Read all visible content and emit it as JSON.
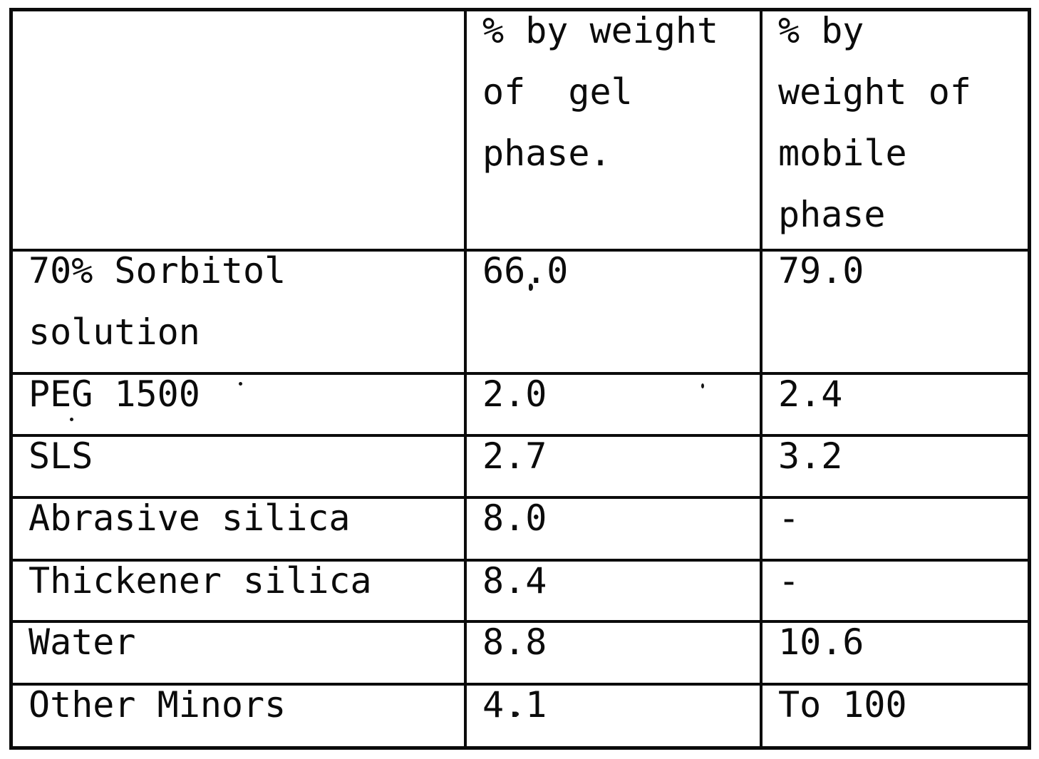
{
  "document": {
    "kind": "scanned patent table page",
    "ink_color": "#0b0b0b",
    "paper_color": "#ffffff"
  },
  "table": {
    "header": {
      "ingredient": "",
      "gel_phase": "% by weight\nof  gel\nphase.",
      "mobile_phase": "% by\nweight of\nmobile\nphase"
    },
    "rows": [
      {
        "ingredient": "70% Sorbitol\nsolution",
        "gel": "66.0",
        "mobile": "79.0"
      },
      {
        "ingredient": "PEG 1500",
        "gel": "2.0",
        "mobile": "2.4"
      },
      {
        "ingredient": "SLS",
        "gel": "2.7",
        "mobile": "3.2"
      },
      {
        "ingredient": "Abrasive silica",
        "gel": "8.0",
        "mobile": "-"
      },
      {
        "ingredient": "Thickener silica",
        "gel": "8.4",
        "mobile": "-"
      },
      {
        "ingredient": "Water",
        "gel": "8.8",
        "mobile": "10.6"
      },
      {
        "ingredient": "Other Minors",
        "gel": "4.1",
        "mobile": "To 100"
      }
    ]
  }
}
